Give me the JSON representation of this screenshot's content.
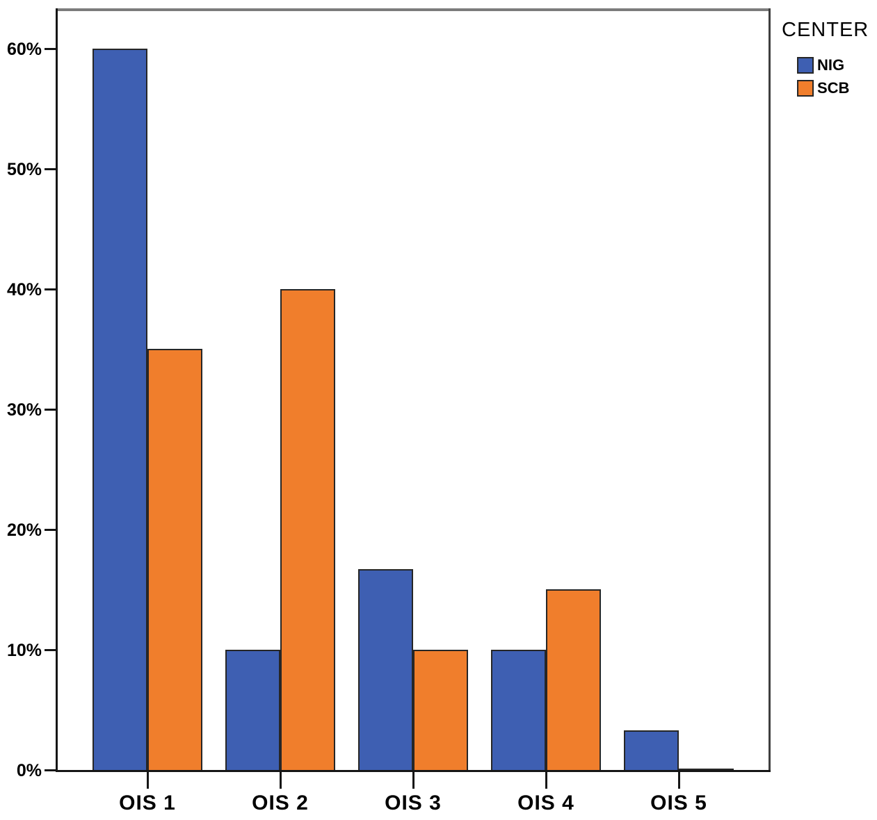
{
  "chart_data": {
    "type": "bar",
    "title": "",
    "xlabel": "",
    "ylabel": "",
    "categories": [
      "OIS 1",
      "OIS 2",
      "OIS 3",
      "OIS 4",
      "OIS 5"
    ],
    "series": [
      {
        "name": "NIG",
        "color": "#3E5FB2",
        "values": [
          60,
          10,
          16.7,
          10,
          3.3
        ]
      },
      {
        "name": "SCB",
        "color": "#F07E2C",
        "values": [
          35,
          40,
          10,
          15,
          0.1
        ]
      }
    ],
    "legend_title": "CENTER",
    "legend_position": "top-right",
    "y_ticks": [
      {
        "value": 0,
        "label": "0%"
      },
      {
        "value": 10,
        "label": "10%"
      },
      {
        "value": 20,
        "label": "20%"
      },
      {
        "value": 30,
        "label": "30%"
      },
      {
        "value": 40,
        "label": "40%"
      },
      {
        "value": 50,
        "label": "50%"
      },
      {
        "value": 60,
        "label": "60%"
      }
    ],
    "ylim": [
      0,
      63
    ],
    "grid": false
  },
  "colors": {
    "nig_blue": "#3E5FB2",
    "scb_orange": "#F07E2C",
    "bar_border": "#262626",
    "axis_black": "#161616",
    "frame_top_gray": "#7c7c7c",
    "background": "#ffffff"
  }
}
